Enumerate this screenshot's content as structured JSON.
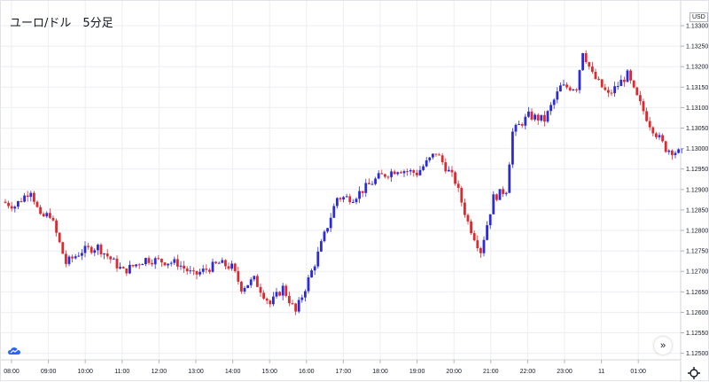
{
  "title": "ユーロ/ドル　5分足",
  "currency": "USD",
  "icons": {
    "logo": "tradingview-cloud-icon",
    "scroll": "chevron-double-right-icon",
    "settings": "gear-icon"
  },
  "scroll_label": "»",
  "colors": {
    "up": "#2b2bd9",
    "down": "#e0292e",
    "grid": "#eceef2",
    "axis_text": "#131722"
  },
  "chart_data": {
    "type": "candlestick",
    "title": "ユーロ/ドル　5分足",
    "y_unit": "USD",
    "y_ticks": [
      "1.13300",
      "1.13250",
      "1.13200",
      "1.13150",
      "1.13100",
      "1.13050",
      "1.13000",
      "1.12950",
      "1.12900",
      "1.12850",
      "1.12800",
      "1.12750",
      "1.12700",
      "1.12650",
      "1.12600",
      "1.12550",
      "1.12500"
    ],
    "x_ticks": [
      "08:00",
      "09:00",
      "10:00",
      "11:00",
      "12:00",
      "13:00",
      "14:00",
      "15:00",
      "16:00",
      "17:00",
      "18:00",
      "19:00",
      "20:00",
      "21:00",
      "22:00",
      "23:00",
      "11",
      "01:00"
    ],
    "grid": true,
    "price_anchors": [
      [
        0,
        1.1287
      ],
      [
        4,
        1.1286
      ],
      [
        9,
        1.129
      ],
      [
        12,
        1.1283
      ],
      [
        15,
        1.1284
      ],
      [
        20,
        1.1272
      ],
      [
        25,
        1.1275
      ],
      [
        30,
        1.1276
      ],
      [
        38,
        1.127
      ],
      [
        45,
        1.1273
      ],
      [
        55,
        1.1272
      ],
      [
        60,
        1.1269
      ],
      [
        68,
        1.1272
      ],
      [
        72,
        1.1271
      ],
      [
        75,
        1.1266
      ],
      [
        79,
        1.1268
      ],
      [
        84,
        1.1262
      ],
      [
        88,
        1.1266
      ],
      [
        92,
        1.126
      ],
      [
        98,
        1.1272
      ],
      [
        105,
        1.1288
      ],
      [
        110,
        1.1288
      ],
      [
        118,
        1.1293
      ],
      [
        124,
        1.1295
      ],
      [
        130,
        1.1294
      ],
      [
        136,
        1.1299
      ],
      [
        142,
        1.1292
      ],
      [
        146,
        1.1282
      ],
      [
        150,
        1.1275
      ],
      [
        154,
        1.1288
      ],
      [
        158,
        1.129
      ],
      [
        160,
        1.1304
      ],
      [
        165,
        1.1308
      ],
      [
        170,
        1.1307
      ],
      [
        175,
        1.1315
      ],
      [
        180,
        1.1315
      ],
      [
        182,
        1.1324
      ],
      [
        185,
        1.1318
      ],
      [
        190,
        1.1313
      ],
      [
        196,
        1.1318
      ],
      [
        198,
        1.1314
      ],
      [
        203,
        1.1306
      ],
      [
        208,
        1.13
      ],
      [
        212,
        1.1299
      ]
    ]
  }
}
